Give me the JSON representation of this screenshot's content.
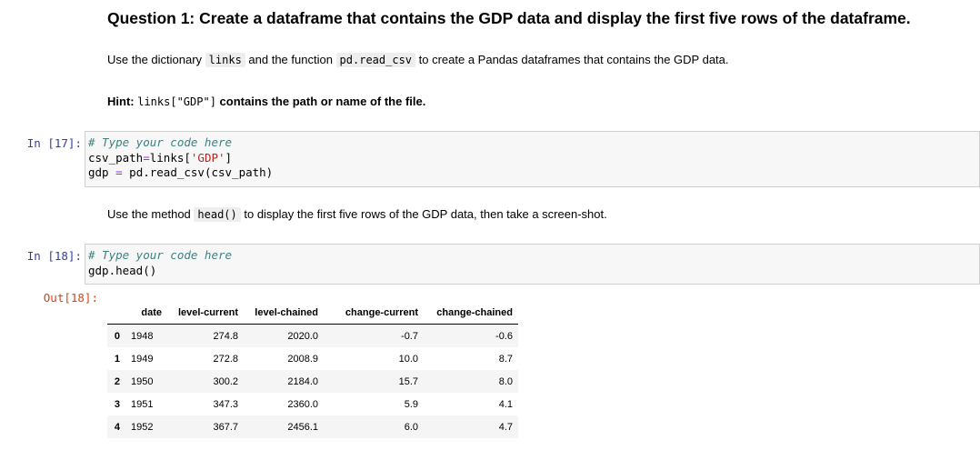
{
  "question": {
    "title": "Question 1: Create a dataframe that contains the GDP data and display the first five rows of the dataframe.",
    "para1_pre": "Use the dictionary ",
    "para1_code1": "links",
    "para1_mid": " and the function ",
    "para1_code2": "pd.read_csv",
    "para1_post": " to create a Pandas dataframes that contains the GDP data.",
    "hint_label": "Hint: ",
    "hint_code": "links[\"GDP\"]",
    "hint_post": " contains the path or name of the file.",
    "para2_pre": "Use the method ",
    "para2_code": "head()",
    "para2_post": " to display the first five rows of the GDP data, then take a screen-shot."
  },
  "cell17": {
    "prompt": "In [17]:",
    "comment": "# Type your code here",
    "line2_pre": "csv_path",
    "line2_op": "=",
    "line2_mid": "links[",
    "line2_str": "'GDP'",
    "line2_post": "]",
    "line3_pre": "gdp ",
    "line3_op": "=",
    "line3_post": " pd.read_csv(csv_path)"
  },
  "cell18": {
    "prompt": "In [18]:",
    "comment": "# Type your code here",
    "line2": "gdp.head()",
    "out_prompt": "Out[18]:"
  },
  "dataframe": {
    "columns": [
      "",
      "date",
      "level-current",
      "level-chained",
      "change-current",
      "change-chained"
    ],
    "rows": [
      [
        "0",
        "1948",
        "274.8",
        "2020.0",
        "-0.7",
        "-0.6"
      ],
      [
        "1",
        "1949",
        "272.8",
        "2008.9",
        "10.0",
        "8.7"
      ],
      [
        "2",
        "1950",
        "300.2",
        "2184.0",
        "15.7",
        "8.0"
      ],
      [
        "3",
        "1951",
        "347.3",
        "2360.0",
        "5.9",
        "4.1"
      ],
      [
        "4",
        "1952",
        "367.7",
        "2456.1",
        "6.0",
        "4.7"
      ]
    ]
  }
}
